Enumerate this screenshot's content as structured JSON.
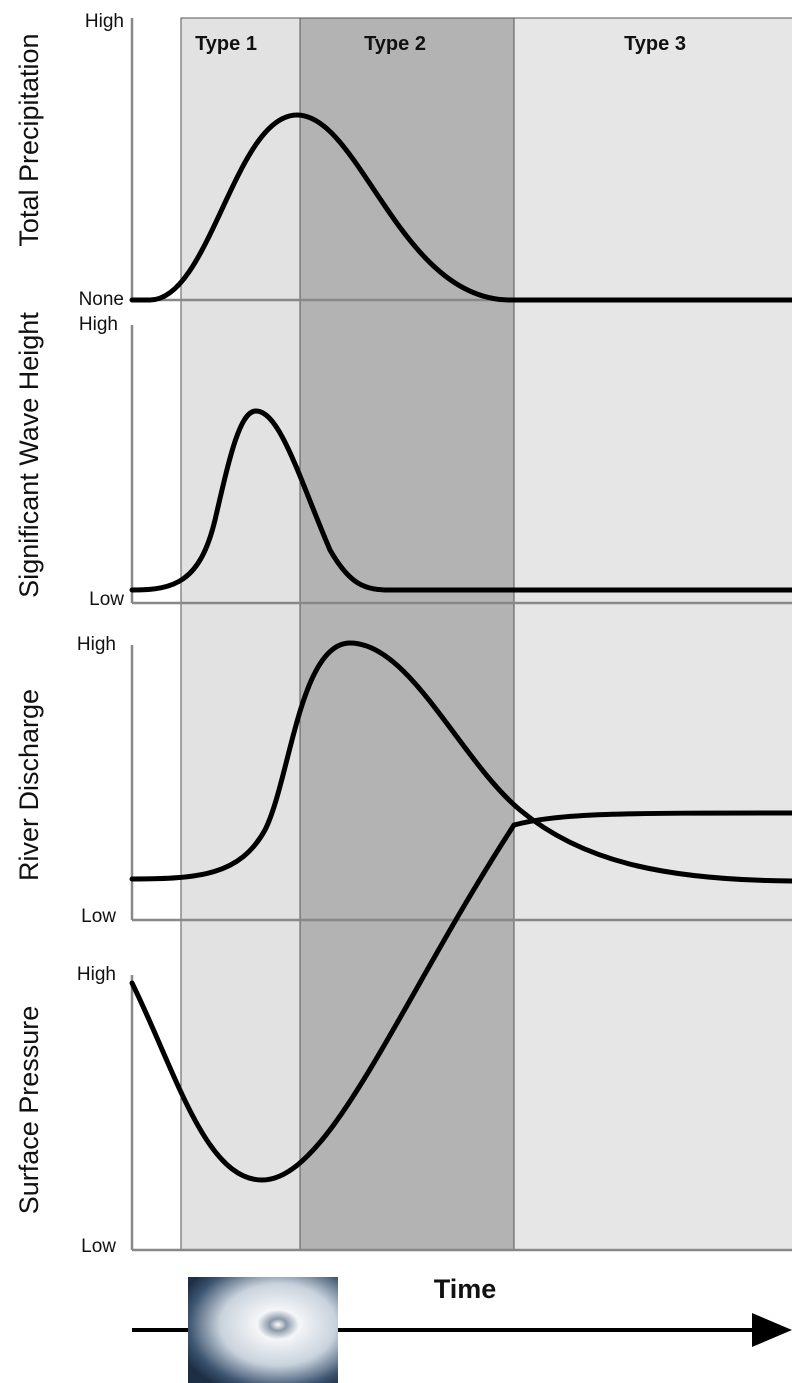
{
  "regions": [
    "Type 1",
    "Type 2",
    "Type 3"
  ],
  "panels": [
    {
      "label": "Total Precipitation",
      "high": "High",
      "low": "None"
    },
    {
      "label": "Significant Wave Height",
      "high": "High",
      "low": "Low"
    },
    {
      "label": "River Discharge",
      "high": "High",
      "low": "Low"
    },
    {
      "label": "Surface Pressure",
      "high": "High",
      "low": "Low"
    }
  ],
  "time_label": "Time"
}
